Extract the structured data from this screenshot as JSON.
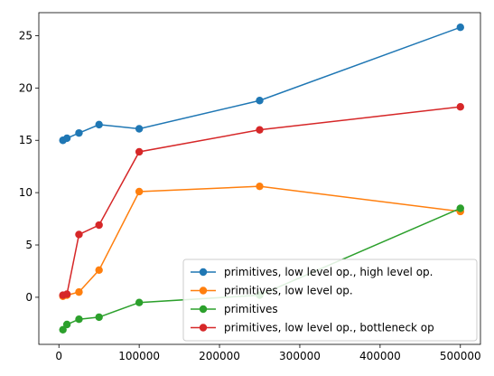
{
  "chart_data": {
    "type": "line",
    "title": "",
    "xlabel": "",
    "ylabel": "",
    "xlim": [
      -25000,
      525000
    ],
    "ylim": [
      -4.5,
      27.2
    ],
    "x_ticks": [
      0,
      100000,
      200000,
      300000,
      400000,
      500000
    ],
    "x_tick_labels": [
      "0",
      "100000",
      "200000",
      "300000",
      "400000",
      "500000"
    ],
    "y_ticks": [
      0,
      5,
      10,
      15,
      20,
      25
    ],
    "y_tick_labels": [
      "0",
      "5",
      "10",
      "15",
      "20",
      "25"
    ],
    "grid": false,
    "legend_position": "lower-right",
    "series": [
      {
        "name": "primitives, low level op., high level op.",
        "color": "#1f77b4",
        "points": [
          [
            5000,
            15.0
          ],
          [
            10000,
            15.2
          ],
          [
            25000,
            15.7
          ],
          [
            50000,
            16.5
          ],
          [
            100000,
            16.1
          ],
          [
            250000,
            18.8
          ],
          [
            500000,
            25.8
          ]
        ]
      },
      {
        "name": "primitives, low level op.",
        "color": "#ff7f0e",
        "points": [
          [
            5000,
            0.1
          ],
          [
            10000,
            0.2
          ],
          [
            25000,
            0.5
          ],
          [
            50000,
            2.6
          ],
          [
            100000,
            10.1
          ],
          [
            250000,
            10.6
          ],
          [
            500000,
            8.2
          ]
        ]
      },
      {
        "name": "primitives",
        "color": "#2ca02c",
        "points": [
          [
            5000,
            -3.1
          ],
          [
            10000,
            -2.6
          ],
          [
            25000,
            -2.1
          ],
          [
            50000,
            -1.9
          ],
          [
            100000,
            -0.5
          ],
          [
            250000,
            0.2
          ],
          [
            500000,
            8.5
          ]
        ]
      },
      {
        "name": "primitives, low level op., bottleneck op",
        "color": "#d62728",
        "points": [
          [
            5000,
            0.2
          ],
          [
            10000,
            0.3
          ],
          [
            25000,
            6.0
          ],
          [
            50000,
            6.9
          ],
          [
            100000,
            13.9
          ],
          [
            250000,
            16.0
          ],
          [
            500000,
            18.2
          ]
        ]
      }
    ]
  }
}
